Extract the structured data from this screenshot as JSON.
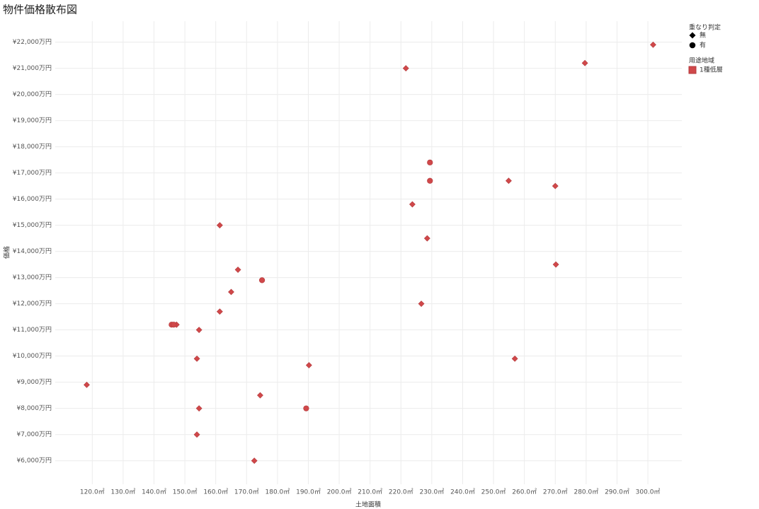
{
  "chart_data": {
    "type": "scatter",
    "title": "物件価格散布図",
    "x_label": "土地面積",
    "y_label": "価格",
    "xlim": [
      108,
      311
    ],
    "ylim": [
      5100,
      22800
    ],
    "xticks": [
      {
        "value": 120,
        "label": "120.0㎡"
      },
      {
        "value": 130,
        "label": "130.0㎡"
      },
      {
        "value": 140,
        "label": "140.0㎡"
      },
      {
        "value": 150,
        "label": "150.0㎡"
      },
      {
        "value": 160,
        "label": "160.0㎡"
      },
      {
        "value": 170,
        "label": "170.0㎡"
      },
      {
        "value": 180,
        "label": "180.0㎡"
      },
      {
        "value": 190,
        "label": "190.0㎡"
      },
      {
        "value": 200,
        "label": "200.0㎡"
      },
      {
        "value": 210,
        "label": "210.0㎡"
      },
      {
        "value": 220,
        "label": "220.0㎡"
      },
      {
        "value": 230,
        "label": "230.0㎡"
      },
      {
        "value": 240,
        "label": "240.0㎡"
      },
      {
        "value": 250,
        "label": "250.0㎡"
      },
      {
        "value": 260,
        "label": "260.0㎡"
      },
      {
        "value": 270,
        "label": "270.0㎡"
      },
      {
        "value": 280,
        "label": "280.0㎡"
      },
      {
        "value": 290,
        "label": "290.0㎡"
      },
      {
        "value": 300,
        "label": "300.0㎡"
      }
    ],
    "yticks": [
      {
        "value": 6000,
        "label": "¥6,000万円"
      },
      {
        "value": 7000,
        "label": "¥7,000万円"
      },
      {
        "value": 8000,
        "label": "¥8,000万円"
      },
      {
        "value": 9000,
        "label": "¥9,000万円"
      },
      {
        "value": 10000,
        "label": "¥10,000万円"
      },
      {
        "value": 11000,
        "label": "¥11,000万円"
      },
      {
        "value": 12000,
        "label": "¥12,000万円"
      },
      {
        "value": 13000,
        "label": "¥13,000万円"
      },
      {
        "value": 14000,
        "label": "¥14,000万円"
      },
      {
        "value": 15000,
        "label": "¥15,000万円"
      },
      {
        "value": 16000,
        "label": "¥16,000万円"
      },
      {
        "value": 17000,
        "label": "¥17,000万円"
      },
      {
        "value": 18000,
        "label": "¥18,000万円"
      },
      {
        "value": 19000,
        "label": "¥19,000万円"
      },
      {
        "value": 20000,
        "label": "¥20,000万円"
      },
      {
        "value": 21000,
        "label": "¥21,000万円"
      },
      {
        "value": 22000,
        "label": "¥22,000万円"
      }
    ],
    "grid": true,
    "shape_legend_title": "重なり判定",
    "color_legend_title": "用途地域",
    "color_legend_items": [
      "1種低層"
    ],
    "color": "#d0484a",
    "series": [
      {
        "name": "無",
        "shape": "diamond",
        "x": [
          301.7,
          279.6,
          221.6,
          254.9,
          270.0,
          223.7,
          228.5,
          270.2,
          161.3,
          167.2,
          165.0,
          226.6,
          161.3,
          147.3,
          154.6,
          153.9,
          256.9,
          190.2,
          118.2,
          174.4,
          154.6,
          153.9,
          172.5
        ],
        "values": [
          21900,
          21200,
          21000,
          16700,
          16500,
          15800,
          14500,
          13500,
          15000,
          13300,
          12450,
          12000,
          11700,
          11200,
          11000,
          9900,
          9900,
          9650,
          8900,
          8500,
          8000,
          7000,
          6000
        ]
      },
      {
        "name": "有",
        "shape": "circle",
        "x": [
          229.4,
          229.4,
          175.0,
          145.7,
          146.4,
          189.3
        ],
        "values": [
          17400,
          16700,
          12900,
          11200,
          11200,
          8000
        ]
      }
    ]
  }
}
